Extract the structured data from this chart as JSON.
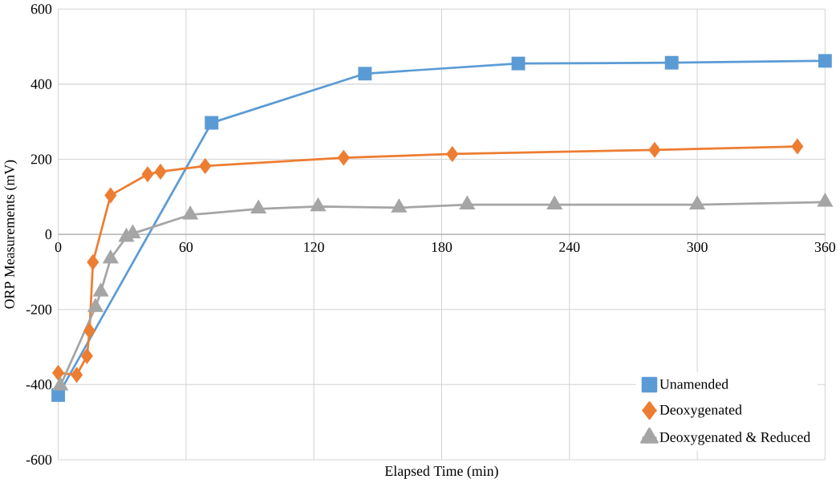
{
  "chart_data": {
    "type": "line",
    "xlabel": "Elapsed Time (min)",
    "ylabel": "ORP Measurements (mV)",
    "xlim": [
      0,
      360
    ],
    "xticks": [
      0,
      60,
      120,
      180,
      240,
      300,
      360
    ],
    "ylim": [
      -600,
      600
    ],
    "yticks": [
      -600,
      -400,
      -200,
      0,
      200,
      400,
      600
    ],
    "grid": true,
    "legend": "bottom right",
    "series": [
      {
        "name": "Unamended",
        "color": "#5b9bd5",
        "marker": "square",
        "x": [
          0,
          72,
          144,
          216,
          288,
          360
        ],
        "values": [
          -428,
          297,
          428,
          455,
          457,
          462
        ]
      },
      {
        "name": "Deoxygenated",
        "color": "#ed7d31",
        "marker": "diamond",
        "x": [
          0,
          8.7,
          13.5,
          14.7,
          16.3,
          24.6,
          42,
          48,
          69,
          134,
          185,
          280,
          347
        ],
        "values": [
          -369,
          -374,
          -324,
          -257,
          -74,
          104,
          160,
          167,
          182,
          204,
          214,
          225,
          234
        ]
      },
      {
        "name": "Deoxygenated & Reduced",
        "color": "#a5a5a5",
        "marker": "triangle",
        "x": [
          1,
          17.5,
          20,
          24.6,
          32,
          35,
          62,
          94,
          122,
          160,
          192,
          233,
          300,
          360
        ],
        "values": [
          -403,
          -194,
          -153,
          -65,
          -7,
          2,
          52,
          68,
          74,
          71,
          79,
          79,
          79,
          86
        ]
      }
    ]
  }
}
